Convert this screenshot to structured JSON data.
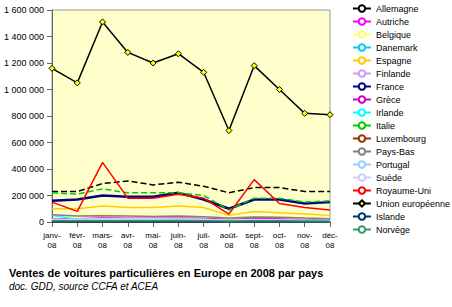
{
  "chart_data": {
    "type": "line",
    "title": "Ventes de voitures particulières en Europe en 2008 par pays",
    "subtitle": "doc. GDD, source CCFA et ACEA",
    "categories": [
      "janv-08",
      "févr-08",
      "mars-08",
      "avr-08",
      "mai-08",
      "juin-08",
      "juil-08",
      "août-08",
      "sept-08",
      "oct-08",
      "nov-08",
      "déc-08"
    ],
    "ylim": [
      0,
      1600000
    ],
    "yticks": [
      0,
      {
        "value": 200000,
        "label": "200 000"
      },
      {
        "value": 400000,
        "label": "400 000"
      },
      {
        "value": 600000,
        "label": "600 000"
      },
      {
        "value": 800000,
        "label": "800 000"
      },
      {
        "value": 1000000,
        "label": "1 000 000"
      },
      {
        "value": 1200000,
        "label": "1 200 000"
      },
      {
        "value": 1400000,
        "label": "1 400 000"
      },
      {
        "value": 1600000,
        "label": "1 600 000"
      }
    ],
    "grid": false,
    "legend": "right",
    "series": [
      {
        "name": "Allemagne",
        "color": "#000000",
        "line_style": "dashed",
        "values": [
          230000,
          230000,
          290000,
          310000,
          280000,
          300000,
          270000,
          220000,
          260000,
          260000,
          230000,
          230000
        ]
      },
      {
        "name": "Autriche",
        "color": "#ff00ff",
        "values": [
          25000,
          24000,
          30000,
          28000,
          29000,
          28000,
          26000,
          20000,
          24000,
          23000,
          19000,
          17000
        ]
      },
      {
        "name": "Belgique",
        "color": "#ffff66",
        "values": [
          50000,
          48000,
          55000,
          50000,
          45000,
          45000,
          40000,
          30000,
          40000,
          38000,
          33000,
          25000
        ]
      },
      {
        "name": "Danemark",
        "color": "#00ccff",
        "values": [
          13000,
          13000,
          14000,
          14000,
          13000,
          13000,
          12000,
          10000,
          12000,
          11000,
          9000,
          8000
        ]
      },
      {
        "name": "Espagne",
        "color": "#ffcc00",
        "values": [
          100000,
          100000,
          120000,
          110000,
          110000,
          120000,
          110000,
          50000,
          80000,
          70000,
          60000,
          50000
        ]
      },
      {
        "name": "Finlande",
        "color": "#cc99ff",
        "values": [
          14000,
          12000,
          13000,
          12000,
          12000,
          11000,
          10000,
          9000,
          10000,
          9000,
          7000,
          6000
        ]
      },
      {
        "name": "France",
        "color": "#000080",
        "values": [
          160000,
          170000,
          200000,
          190000,
          190000,
          220000,
          170000,
          100000,
          170000,
          170000,
          140000,
          150000
        ]
      },
      {
        "name": "Grèce",
        "color": "#cc00cc",
        "values": [
          22000,
          22000,
          26000,
          25000,
          25000,
          27000,
          26000,
          17000,
          20000,
          18000,
          15000,
          14000
        ]
      },
      {
        "name": "Irlande",
        "color": "#00ffff",
        "values": [
          50000,
          20000,
          20000,
          15000,
          12000,
          8000,
          10000,
          2000,
          2000,
          1000,
          1000,
          500
        ]
      },
      {
        "name": "Italie",
        "color": "#00cc00",
        "line_style": "dashed",
        "values": [
          220000,
          210000,
          250000,
          220000,
          220000,
          220000,
          200000,
          90000,
          180000,
          180000,
          150000,
          160000
        ]
      },
      {
        "name": "Luxembourg",
        "color": "#993300",
        "values": [
          4500,
          4500,
          5500,
          5000,
          4500,
          4500,
          4000,
          3000,
          4000,
          3500,
          3000,
          3000
        ]
      },
      {
        "name": "Pays-Bas",
        "color": "#808080",
        "values": [
          55000,
          45000,
          48000,
          45000,
          42000,
          45000,
          40000,
          30000,
          38000,
          36000,
          30000,
          25000
        ]
      },
      {
        "name": "Portugal",
        "color": "#99ccff",
        "values": [
          18000,
          17000,
          20000,
          18000,
          19000,
          20000,
          20000,
          12000,
          16000,
          15000,
          13000,
          14000
        ]
      },
      {
        "name": "Suède",
        "color": "#ccccff",
        "values": [
          20000,
          22000,
          25000,
          24000,
          24000,
          25000,
          20000,
          15000,
          18000,
          16000,
          13000,
          12000
        ]
      },
      {
        "name": "Royaume-Uni",
        "color": "#ff0000",
        "values": [
          150000,
          80000,
          450000,
          180000,
          180000,
          210000,
          180000,
          60000,
          320000,
          140000,
          110000,
          90000
        ]
      },
      {
        "name": "Union européenne",
        "color": "#000000",
        "marker": "diamond",
        "values": [
          1160000,
          1050000,
          1510000,
          1280000,
          1200000,
          1270000,
          1130000,
          690000,
          1180000,
          1000000,
          820000,
          810000
        ]
      },
      {
        "name": "Islande",
        "color": "#003366",
        "values": [
          1000,
          800,
          900,
          800,
          700,
          700,
          500,
          300,
          400,
          300,
          200,
          150
        ]
      },
      {
        "name": "Norvège",
        "color": "#339966",
        "values": [
          10000,
          9000,
          10000,
          10000,
          10000,
          11000,
          9000,
          7000,
          9000,
          9000,
          8000,
          8000
        ]
      }
    ]
  }
}
